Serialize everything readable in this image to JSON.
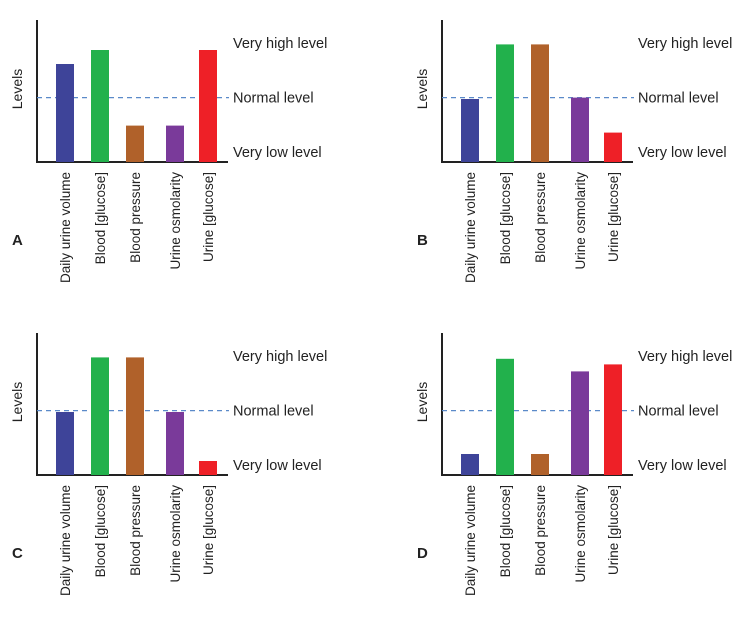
{
  "colors": {
    "axis": "#222222",
    "normal_line": "#5b8ac9",
    "text": "#222222"
  },
  "chart_data": [
    {
      "type": "bar",
      "panel": "A",
      "ylabel": "Levels",
      "categories": [
        "Daily urine volume",
        "Blood [glucose]",
        "Blood pressure",
        "Urine osmolarity",
        "Urine [glucose]"
      ],
      "values": [
        0.7,
        0.8,
        0.26,
        0.26,
        0.8
      ],
      "colors": [
        "#3e4499",
        "#22b14c",
        "#b0612a",
        "#7a3a9a",
        "#ee2027"
      ],
      "ylim": [
        0,
        1
      ],
      "reference_lines": [
        {
          "label": "Very high level",
          "value": 0.85,
          "dashed": false
        },
        {
          "label": "Normal level",
          "value": 0.46,
          "dashed": true
        },
        {
          "label": "Very low level",
          "value": 0.07,
          "dashed": false
        }
      ]
    },
    {
      "type": "bar",
      "panel": "B",
      "ylabel": "Levels",
      "categories": [
        "Daily urine volume",
        "Blood [glucose]",
        "Blood pressure",
        "Urine osmolarity",
        "Urine [glucose]"
      ],
      "values": [
        0.45,
        0.84,
        0.84,
        0.46,
        0.21
      ],
      "colors": [
        "#3e4499",
        "#22b14c",
        "#b0612a",
        "#7a3a9a",
        "#ee2027"
      ],
      "ylim": [
        0,
        1
      ],
      "reference_lines": [
        {
          "label": "Very high level",
          "value": 0.85,
          "dashed": false
        },
        {
          "label": "Normal level",
          "value": 0.46,
          "dashed": true
        },
        {
          "label": "Very low level",
          "value": 0.07,
          "dashed": false
        }
      ]
    },
    {
      "type": "bar",
      "panel": "C",
      "ylabel": "Levels",
      "categories": [
        "Daily urine volume",
        "Blood [glucose]",
        "Blood pressure",
        "Urine osmolarity",
        "Urine [glucose]"
      ],
      "values": [
        0.45,
        0.84,
        0.84,
        0.45,
        0.1
      ],
      "colors": [
        "#3e4499",
        "#22b14c",
        "#b0612a",
        "#7a3a9a",
        "#ee2027"
      ],
      "ylim": [
        0,
        1
      ],
      "reference_lines": [
        {
          "label": "Very high level",
          "value": 0.85,
          "dashed": false
        },
        {
          "label": "Normal level",
          "value": 0.46,
          "dashed": true
        },
        {
          "label": "Very low level",
          "value": 0.07,
          "dashed": false
        }
      ]
    },
    {
      "type": "bar",
      "panel": "D",
      "ylabel": "Levels",
      "categories": [
        "Daily urine volume",
        "Blood [glucose]",
        "Blood pressure",
        "Urine osmolarity",
        "Urine [glucose]"
      ],
      "values": [
        0.15,
        0.83,
        0.15,
        0.74,
        0.79
      ],
      "colors": [
        "#3e4499",
        "#22b14c",
        "#b0612a",
        "#7a3a9a",
        "#ee2027"
      ],
      "ylim": [
        0,
        1
      ],
      "reference_lines": [
        {
          "label": "Very high level",
          "value": 0.85,
          "dashed": false
        },
        {
          "label": "Normal level",
          "value": 0.46,
          "dashed": true
        },
        {
          "label": "Very low level",
          "value": 0.07,
          "dashed": false
        }
      ]
    }
  ]
}
